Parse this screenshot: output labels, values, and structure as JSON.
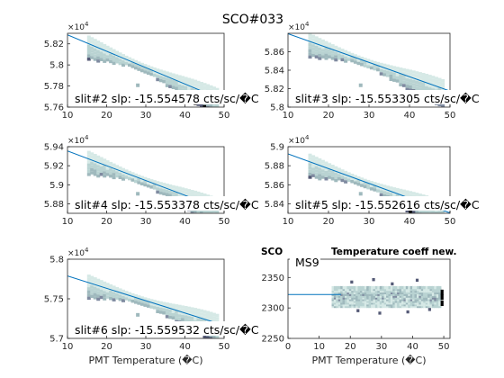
{
  "title": "SCO#033",
  "colors": {
    "axis": "#262626",
    "fit_line": "#0072bd",
    "density_light": "#d6e9e6",
    "density_mid": "#9fb9bd",
    "density_dark": "#555a76",
    "density_max": "#000000"
  },
  "chart_data": [
    {
      "type": "heatmap",
      "panel": "slit2",
      "xlabel": "",
      "ylabel": "",
      "exponent_label": "×10^4",
      "xlim": [
        10,
        50
      ],
      "ylim": [
        5.76,
        5.83
      ],
      "xticks": [
        "10",
        "20",
        "30",
        "40",
        "50"
      ],
      "yticks": [
        "5.76",
        "5.78",
        "5.8",
        "5.82"
      ],
      "fit_line": {
        "x": [
          10,
          50
        ],
        "y": [
          5.8285,
          5.7664
        ]
      },
      "annotation": "slit#2 slp: -15.554578 cts/sc/�C"
    },
    {
      "type": "heatmap",
      "panel": "slit3",
      "xlabel": "",
      "ylabel": "",
      "exponent_label": "×10^4",
      "xlim": [
        10,
        50
      ],
      "ylim": [
        5.8,
        5.88
      ],
      "xticks": [
        "10",
        "20",
        "30",
        "40",
        "50"
      ],
      "yticks": [
        "5.8",
        "5.82",
        "5.84",
        "5.86"
      ],
      "fit_line": {
        "x": [
          10,
          50
        ],
        "y": [
          5.8795,
          5.8174
        ]
      },
      "annotation": "slit#3 slp: -15.553305 cts/sc/�C"
    },
    {
      "type": "heatmap",
      "panel": "slit4",
      "xlabel": "",
      "ylabel": "",
      "exponent_label": "×10^4",
      "xlim": [
        10,
        50
      ],
      "ylim": [
        5.87,
        5.94
      ],
      "xticks": [
        "10",
        "20",
        "30",
        "40",
        "50"
      ],
      "yticks": [
        "5.88",
        "5.9",
        "5.92",
        "5.94"
      ],
      "fit_line": {
        "x": [
          10,
          50
        ],
        "y": [
          5.9355,
          5.8734
        ]
      },
      "annotation": "slit#4 slp: -15.553378 cts/sc/�C"
    },
    {
      "type": "heatmap",
      "panel": "slit5",
      "xlabel": "",
      "ylabel": "",
      "exponent_label": "×10^4",
      "xlim": [
        10,
        50
      ],
      "ylim": [
        5.83,
        5.9
      ],
      "xticks": [
        "10",
        "20",
        "30",
        "40",
        "50"
      ],
      "yticks": [
        "5.84",
        "5.86",
        "5.88",
        "5.9"
      ],
      "fit_line": {
        "x": [
          10,
          50
        ],
        "y": [
          5.8925,
          5.8304
        ]
      },
      "annotation": "slit#5 slp: -15.552616 cts/sc/�C"
    },
    {
      "type": "heatmap",
      "panel": "slit6",
      "xlabel": "PMT Temperature (�C)",
      "ylabel": "",
      "exponent_label": "×10^4",
      "xlim": [
        10,
        50
      ],
      "ylim": [
        5.7,
        5.8
      ],
      "xticks": [
        "10",
        "20",
        "30",
        "40",
        "50"
      ],
      "yticks": [
        "5.7",
        "5.75",
        "5.8"
      ],
      "fit_line": {
        "x": [
          10,
          50
        ],
        "y": [
          5.7788,
          5.7165
        ]
      },
      "annotation": "slit#6 slp: -15.559532 cts/sc/�C"
    },
    {
      "type": "heatmap",
      "panel": "ms9",
      "title": "Temperature coeff new.",
      "title_prefix": "SCO",
      "xlabel": "PMT Temperature (�C)",
      "ylabel": "",
      "xlim": [
        0,
        52
      ],
      "ylim": [
        2250,
        2380
      ],
      "xticks": [
        "0",
        "10",
        "20",
        "30",
        "40",
        "50"
      ],
      "yticks": [
        "2250",
        "2300",
        "2350"
      ],
      "fit_line": {
        "x": [
          0,
          17
        ],
        "y": [
          2322,
          2322
        ]
      },
      "legend": "MS9",
      "legend_position": "top-left"
    }
  ]
}
